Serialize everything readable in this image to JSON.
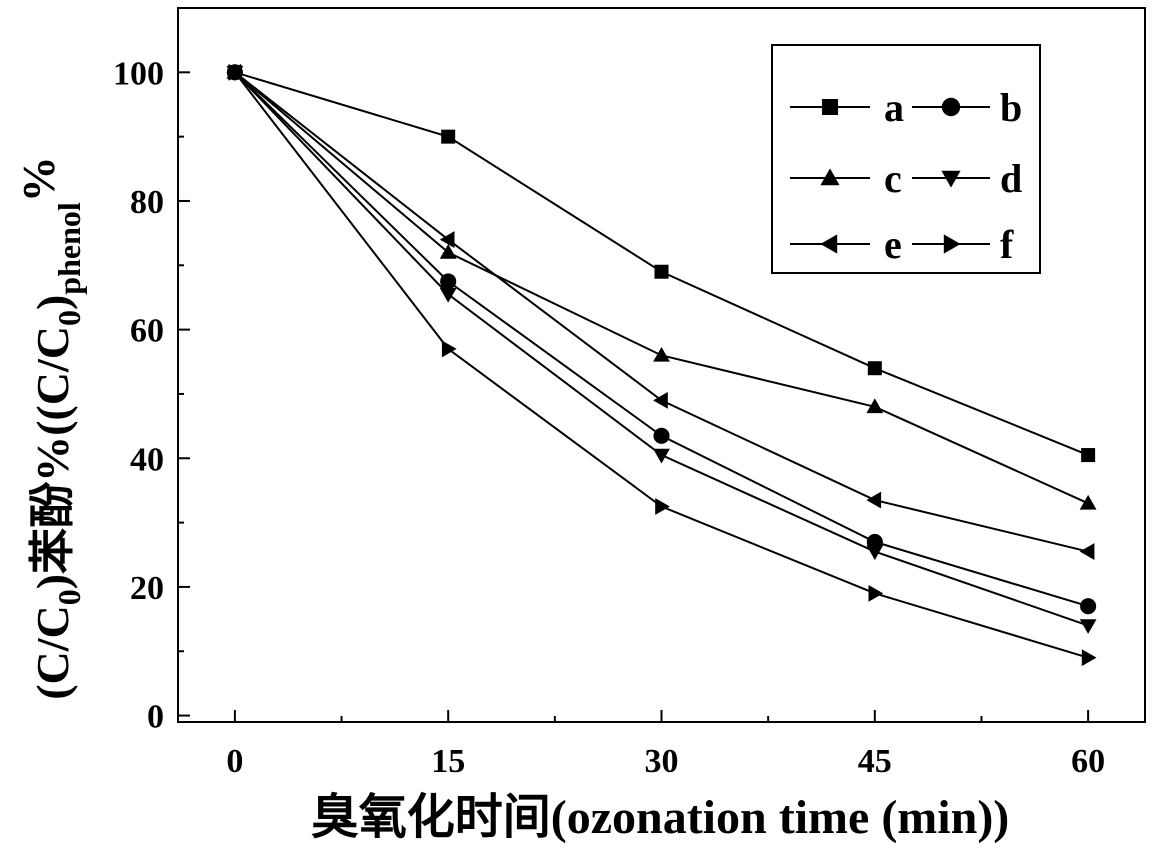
{
  "chart_data": {
    "type": "line",
    "x": [
      0,
      15,
      30,
      45,
      60
    ],
    "xlim": [
      -4,
      64
    ],
    "ylim": [
      -1,
      110
    ],
    "xticks": [
      "0",
      "15",
      "30",
      "45",
      "60"
    ],
    "yticks": [
      "0",
      "20",
      "40",
      "60",
      "80",
      "100"
    ],
    "xlabel": "臭氧化时间(ozonation time (min))",
    "ylabel": {
      "main": "(C/C",
      "sub1": "0",
      "mid": ")苯酚%((C/C",
      "sub2": "0",
      "mid2": ")",
      "sub3": "phenol",
      "end": "%"
    },
    "legend_position": "top-right",
    "series": [
      {
        "name": "a",
        "marker": "square",
        "values": [
          100,
          90,
          69,
          54,
          40.5
        ]
      },
      {
        "name": "b",
        "marker": "circle",
        "values": [
          100,
          67.5,
          43.5,
          27,
          17
        ]
      },
      {
        "name": "c",
        "marker": "triangle-up",
        "values": [
          100,
          72,
          56,
          48,
          33
        ]
      },
      {
        "name": "d",
        "marker": "triangle-down",
        "values": [
          100,
          65.5,
          40.5,
          25.5,
          14
        ]
      },
      {
        "name": "e",
        "marker": "triangle-left",
        "values": [
          100,
          74,
          49,
          33.5,
          25.5
        ]
      },
      {
        "name": "f",
        "marker": "triangle-right",
        "values": [
          100,
          57,
          32.5,
          19,
          9
        ]
      }
    ]
  }
}
